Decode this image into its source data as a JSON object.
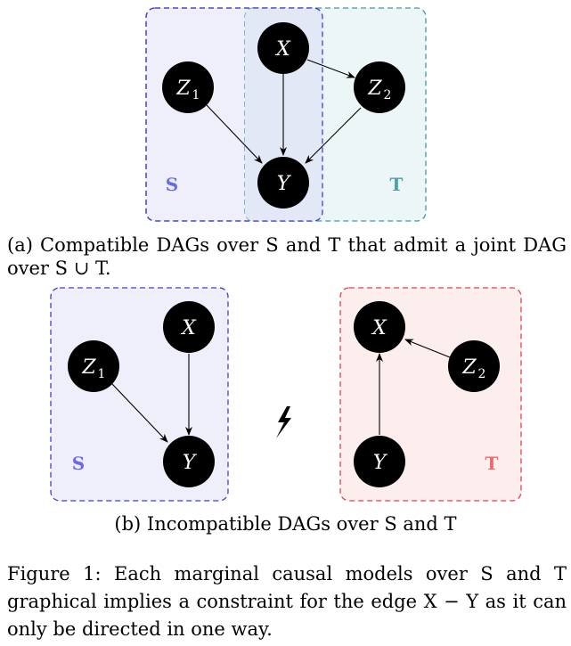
{
  "subfigure_a": {
    "caption": "(a) Compatible DAGs over S and T that admit a joint DAG over S ∪ T.",
    "set_s_label": "S",
    "set_t_label": "T",
    "nodes": {
      "x": {
        "main": "X",
        "sub": ""
      },
      "z1": {
        "main": "Z",
        "sub": "1"
      },
      "z2": {
        "main": "Z",
        "sub": "2"
      },
      "y": {
        "main": "Y",
        "sub": ""
      }
    },
    "edges": [
      [
        "X",
        "Z2"
      ],
      [
        "X",
        "Y"
      ],
      [
        "Z1",
        "Y"
      ],
      [
        "Z2",
        "Y"
      ]
    ]
  },
  "subfigure_b": {
    "caption": "(b) Incompatible DAGs over S and T",
    "incompatible_symbol": "lightning",
    "left": {
      "set_label": "S",
      "nodes": {
        "x": {
          "main": "X",
          "sub": ""
        },
        "z1": {
          "main": "Z",
          "sub": "1"
        },
        "y": {
          "main": "Y",
          "sub": ""
        }
      },
      "edges": [
        [
          "Z1",
          "Y"
        ],
        [
          "X",
          "Y"
        ]
      ]
    },
    "right": {
      "set_label": "T",
      "nodes": {
        "x": {
          "main": "X",
          "sub": ""
        },
        "z2": {
          "main": "Z",
          "sub": "2"
        },
        "y": {
          "main": "Y",
          "sub": ""
        }
      },
      "edges": [
        [
          "Z2",
          "X"
        ],
        [
          "Y",
          "X"
        ]
      ]
    }
  },
  "figure_caption": "Figure 1: Each marginal causal models over S and T graphical implies a constraint for the edge X − Y as it can only be directed in one way.",
  "colors": {
    "s_box_fill": "#efeefb",
    "s_box_stroke": "#3f3fd6",
    "s_label": "#6a6ae8",
    "t_box_fill": "#edf6f6",
    "t_box_stroke": "#3c9aa3",
    "t_label": "#4aa3ab",
    "overlap_fill": "#e2e8f5",
    "t_red_fill": "#fdeeee",
    "t_red_stroke": "#e0444c",
    "t_red_label": "#ee6a6f",
    "node_fill": "#000000"
  }
}
